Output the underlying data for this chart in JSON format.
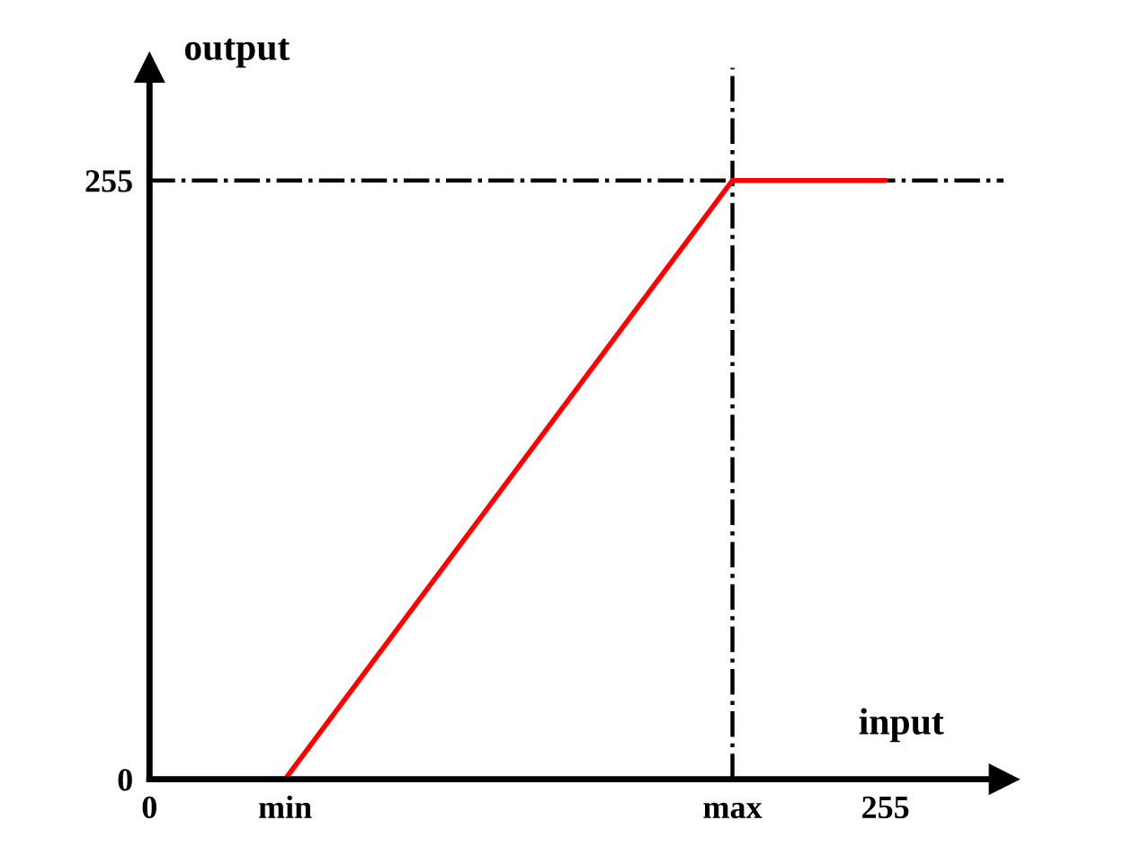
{
  "chart_data": {
    "type": "line",
    "xlabel": "input",
    "ylabel": "output",
    "x": [
      0,
      47,
      202,
      255
    ],
    "series": [
      {
        "color": "#ff0000",
        "values": [
          0,
          0,
          255,
          255
        ]
      }
    ],
    "xlim": [
      0,
      296
    ],
    "ylim": [
      0,
      303
    ],
    "xticks": [
      0,
      {
        "value": 47,
        "label": "min"
      },
      {
        "value": 202,
        "label": "max"
      },
      255
    ],
    "yticks": [
      0,
      255
    ],
    "ref_lines": [
      {
        "axis": "y",
        "value": 255,
        "color": "#000000",
        "line_style": "dashdot"
      },
      {
        "axis": "x",
        "value": 202,
        "color": "#000000",
        "line_style": "dashdot"
      }
    ],
    "grid": false,
    "legend": false,
    "marker": "none",
    "line_style": "solid"
  }
}
